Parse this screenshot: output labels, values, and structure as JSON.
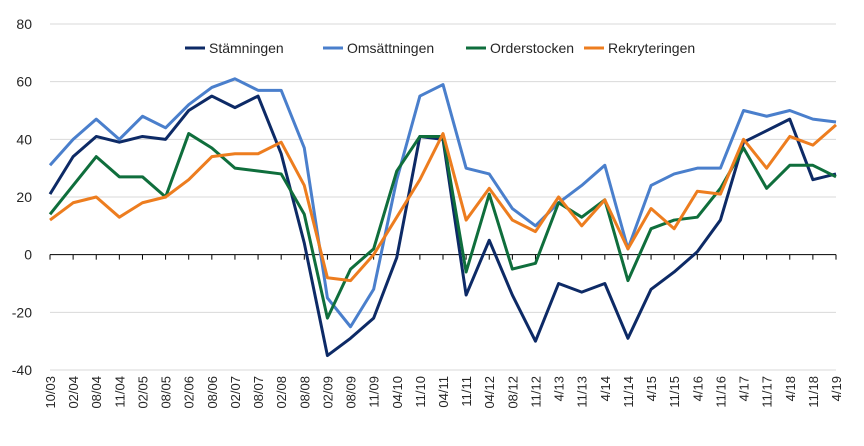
{
  "chart_data": {
    "type": "line",
    "title": "",
    "xlabel": "",
    "ylabel": "",
    "ylim": [
      -40,
      80
    ],
    "yticks": [
      -40,
      -20,
      0,
      20,
      40,
      60,
      80
    ],
    "grid": true,
    "legend_position": "top",
    "categories": [
      "10/03",
      "02/04",
      "08/04",
      "11/04",
      "02/05",
      "08/05",
      "02/06",
      "08/06",
      "02/07",
      "08/07",
      "02/08",
      "08/08",
      "02/09",
      "08/09",
      "11/09",
      "04/10",
      "11/10",
      "04/11",
      "11/11",
      "04/12",
      "08/12",
      "11/12",
      "4/13",
      "11/13",
      "4/14",
      "11/14",
      "4/15",
      "11/15",
      "4/16",
      "11/16",
      "4/17",
      "11/17",
      "4/18",
      "11/18",
      "4/19"
    ],
    "series": [
      {
        "name": "Stämningen",
        "color": "#0d2a66",
        "values": [
          21,
          34,
          41,
          39,
          41,
          40,
          50,
          55,
          51,
          55,
          35,
          4,
          -35,
          -29,
          -22,
          -1,
          41,
          40,
          -14,
          5,
          -14,
          -30,
          -10,
          -13,
          -10,
          -29,
          -12,
          -6,
          1,
          12,
          39,
          43,
          47,
          26,
          28
        ]
      },
      {
        "name": "Omsättningen",
        "color": "#4a7fcc",
        "values": [
          31,
          40,
          47,
          40,
          48,
          44,
          52,
          58,
          61,
          57,
          57,
          37,
          -15,
          -25,
          -12,
          26,
          55,
          59,
          30,
          28,
          16,
          10,
          18,
          24,
          31,
          2,
          24,
          28,
          30,
          30,
          50,
          48,
          50,
          47,
          46
        ]
      },
      {
        "name": "Orderstocken",
        "color": "#0f6e3c",
        "values": [
          14,
          24,
          34,
          27,
          27,
          20,
          42,
          37,
          30,
          29,
          28,
          14,
          -22,
          -5,
          2,
          29,
          41,
          41,
          -6,
          21,
          -5,
          -3,
          18,
          13,
          19,
          -9,
          9,
          12,
          13,
          23,
          37,
          23,
          31,
          31,
          27
        ]
      },
      {
        "name": "Rekryteringen",
        "color": "#ed7d1f",
        "values": [
          12,
          18,
          20,
          13,
          18,
          20,
          26,
          34,
          35,
          35,
          39,
          24,
          -8,
          -9,
          0,
          13,
          26,
          42,
          12,
          23,
          12,
          8,
          20,
          10,
          19,
          2,
          16,
          9,
          22,
          21,
          40,
          30,
          41,
          38,
          45
        ]
      }
    ]
  }
}
